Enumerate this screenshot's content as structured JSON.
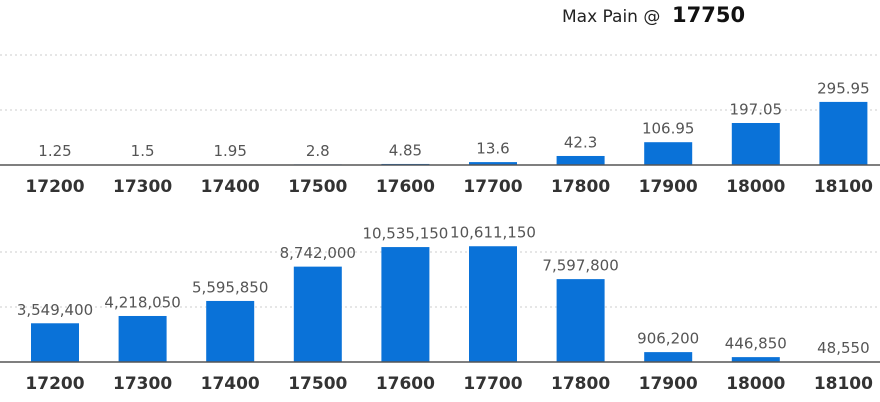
{
  "header": {
    "label": "Max Pain @",
    "value": "17750"
  },
  "chart_data": [
    {
      "type": "bar",
      "color": "#0a72d8",
      "ylim": [
        0,
        516
      ],
      "categories": [
        "17200",
        "17300",
        "17400",
        "17500",
        "17600",
        "17700",
        "17800",
        "17900",
        "18000",
        "18100"
      ],
      "values": [
        1.25,
        1.5,
        1.95,
        2.8,
        4.85,
        13.6,
        42.3,
        106.95,
        197.05,
        295.95
      ]
    },
    {
      "type": "bar",
      "color": "#0a72d8",
      "ylim": [
        0,
        11000000
      ],
      "categories": [
        "17200",
        "17300",
        "17400",
        "17500",
        "17600",
        "17700",
        "17800",
        "17900",
        "18000",
        "18100"
      ],
      "values": [
        3549400,
        4218050,
        5595850,
        8742000,
        10535150,
        10611150,
        7597800,
        906200,
        446850,
        48550
      ],
      "value_labels": [
        "3,549,400",
        "4,218,050",
        "5,595,850",
        "8,742,000",
        "10,535,150",
        "10,611,150",
        "7,597,800",
        "906,200",
        "446,850",
        "48,550"
      ]
    }
  ]
}
